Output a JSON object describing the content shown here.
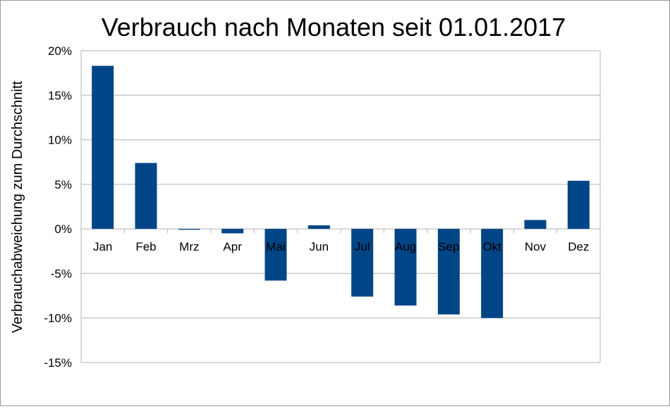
{
  "chart_data": {
    "type": "bar",
    "title": "Verbrauch nach Monaten seit 01.01.2017",
    "xlabel": "",
    "ylabel": "Verbrauchabweichung zum Durchschnitt",
    "unit": "%",
    "categories": [
      "Jan",
      "Feb",
      "Mrz",
      "Apr",
      "Mai",
      "Jun",
      "Jul",
      "Aug",
      "Sep",
      "Okt",
      "Nov",
      "Dez"
    ],
    "values": [
      18.3,
      7.4,
      -0.1,
      -0.5,
      -5.8,
      0.4,
      -7.6,
      -8.6,
      -9.6,
      -10.0,
      1.0,
      5.4
    ],
    "ylim": [
      -15,
      20
    ],
    "yticks": [
      20,
      15,
      10,
      5,
      0,
      -5,
      -10,
      -15
    ],
    "ytick_labels": [
      "20%",
      "15%",
      "10%",
      "5%",
      "0%",
      "-5%",
      "-10%",
      "-15%"
    ],
    "grid": true,
    "legend": "none",
    "colors": {
      "bar": "#004586",
      "grid": "#b3b3b3",
      "axis": "#b3b3b3",
      "text": "#000000"
    }
  }
}
